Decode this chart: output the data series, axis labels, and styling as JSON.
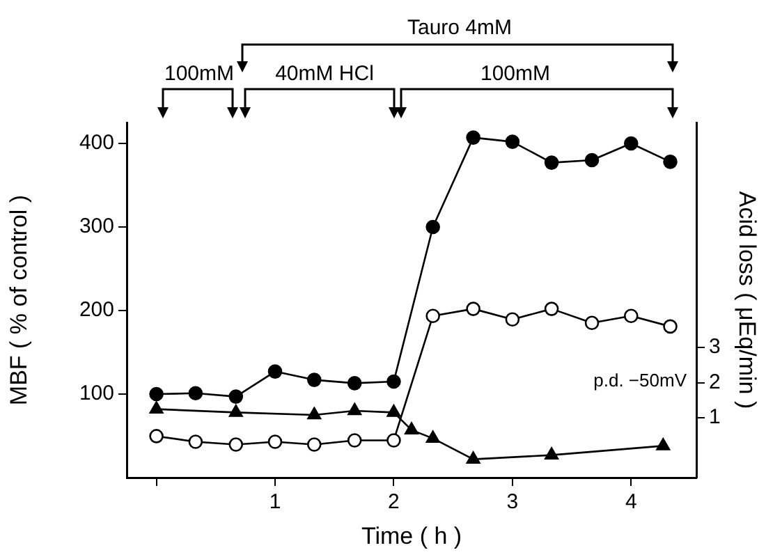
{
  "chart_data": {
    "type": "line",
    "xlabel": "Time ( h )",
    "ylabel": "MBF ( % of control )",
    "y2label": "Acid loss ( μEq/min )",
    "annotations": [
      "Tauro 4mM",
      "100mM",
      "40mM HCl",
      "100mM",
      "p.d. −50mV"
    ],
    "x": [
      0,
      0.33,
      0.67,
      1,
      1.33,
      1.67,
      2,
      2.33,
      2.67,
      3,
      3.33,
      3.67,
      4,
      4.33
    ],
    "series": [
      {
        "color": "#000000",
        "marker": "circle",
        "values": [
          100,
          101,
          97,
          127,
          117,
          113,
          115,
          300,
          407,
          402,
          377,
          380,
          400,
          378
        ]
      },
      {
        "color": "#000000",
        "marker": "circle",
        "axis": "y2",
        "values": [
          0.48,
          0.32,
          0.24,
          0.32,
          0.24,
          0.36,
          0.36,
          3.9,
          4.1,
          3.8,
          4.1,
          3.7,
          3.9,
          3.6
        ]
      },
      {
        "color": "#000000",
        "marker": "triangle",
        "x": [
          0,
          0.67,
          1.33,
          1.67,
          2,
          2.15,
          2.33,
          2.67,
          3.33,
          4.27
        ],
        "values": [
          82,
          78,
          75,
          80,
          78,
          57,
          47,
          22,
          27,
          38
        ]
      }
    ],
    "xlim": [
      -0.25,
      4.55
    ],
    "xticks": [
      {
        "value": 0,
        "label": null
      },
      1,
      2,
      3,
      4
    ],
    "ylim": [
      0,
      425
    ],
    "yticks": [
      100,
      200,
      300,
      400
    ],
    "y2lim": [
      -0.7,
      9.4
    ],
    "y2ticks": [
      1,
      2,
      3
    ],
    "grid": false,
    "line_style": "solid"
  }
}
